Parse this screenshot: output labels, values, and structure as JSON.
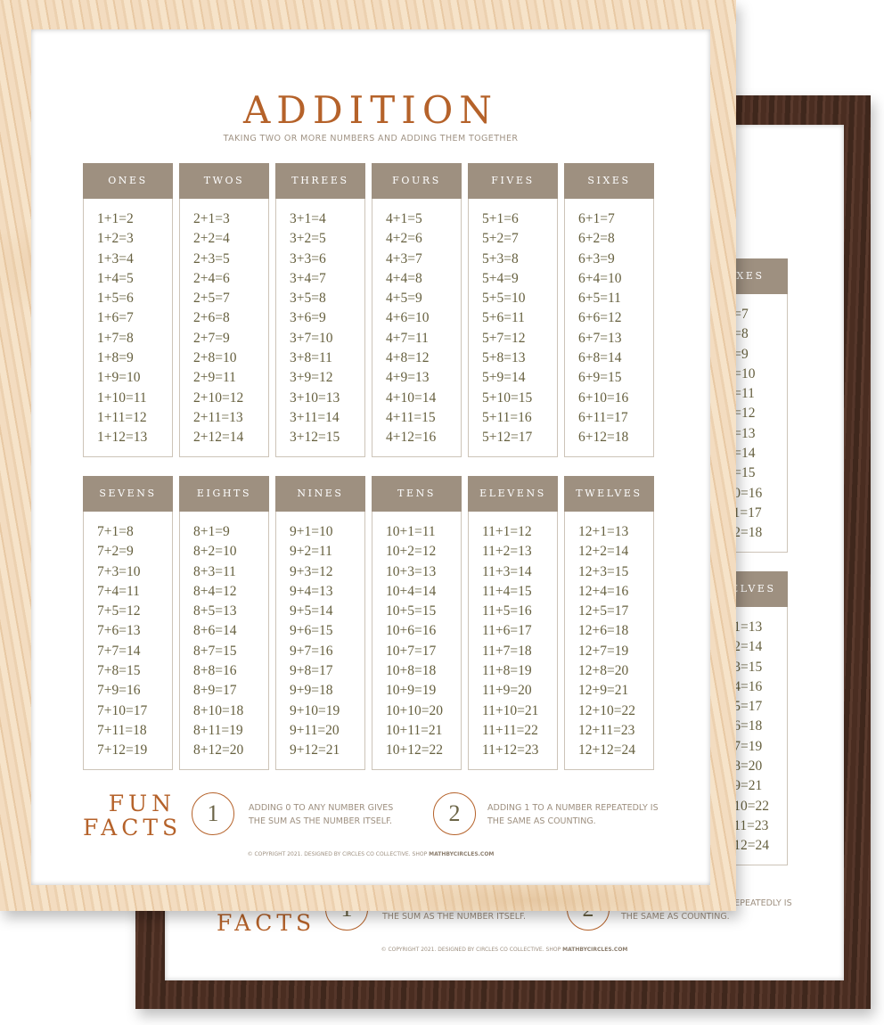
{
  "poster": {
    "title": "ADDITION",
    "subtitle": "TAKING TWO OR MORE NUMBERS AND ADDING THEM TOGETHER",
    "tables": [
      {
        "name": "ONES",
        "equations": [
          "1+1=2",
          "1+2=3",
          "1+3=4",
          "1+4=5",
          "1+5=6",
          "1+6=7",
          "1+7=8",
          "1+8=9",
          "1+9=10",
          "1+10=11",
          "1+11=12",
          "1+12=13"
        ]
      },
      {
        "name": "TWOS",
        "equations": [
          "2+1=3",
          "2+2=4",
          "2+3=5",
          "2+4=6",
          "2+5=7",
          "2+6=8",
          "2+7=9",
          "2+8=10",
          "2+9=11",
          "2+10=12",
          "2+11=13",
          "2+12=14"
        ]
      },
      {
        "name": "THREES",
        "equations": [
          "3+1=4",
          "3+2=5",
          "3+3=6",
          "3+4=7",
          "3+5=8",
          "3+6=9",
          "3+7=10",
          "3+8=11",
          "3+9=12",
          "3+10=13",
          "3+11=14",
          "3+12=15"
        ]
      },
      {
        "name": "FOURS",
        "equations": [
          "4+1=5",
          "4+2=6",
          "4+3=7",
          "4+4=8",
          "4+5=9",
          "4+6=10",
          "4+7=11",
          "4+8=12",
          "4+9=13",
          "4+10=14",
          "4+11=15",
          "4+12=16"
        ]
      },
      {
        "name": "FIVES",
        "equations": [
          "5+1=6",
          "5+2=7",
          "5+3=8",
          "5+4=9",
          "5+5=10",
          "5+6=11",
          "5+7=12",
          "5+8=13",
          "5+9=14",
          "5+10=15",
          "5+11=16",
          "5+12=17"
        ]
      },
      {
        "name": "SIXES",
        "equations": [
          "6+1=7",
          "6+2=8",
          "6+3=9",
          "6+4=10",
          "6+5=11",
          "6+6=12",
          "6+7=13",
          "6+8=14",
          "6+9=15",
          "6+10=16",
          "6+11=17",
          "6+12=18"
        ]
      },
      {
        "name": "SEVENS",
        "equations": [
          "7+1=8",
          "7+2=9",
          "7+3=10",
          "7+4=11",
          "7+5=12",
          "7+6=13",
          "7+7=14",
          "7+8=15",
          "7+9=16",
          "7+10=17",
          "7+11=18",
          "7+12=19"
        ]
      },
      {
        "name": "EIGHTS",
        "equations": [
          "8+1=9",
          "8+2=10",
          "8+3=11",
          "8+4=12",
          "8+5=13",
          "8+6=14",
          "8+7=15",
          "8+8=16",
          "8+9=17",
          "8+10=18",
          "8+11=19",
          "8+12=20"
        ]
      },
      {
        "name": "NINES",
        "equations": [
          "9+1=10",
          "9+2=11",
          "9+3=12",
          "9+4=13",
          "9+5=14",
          "9+6=15",
          "9+7=16",
          "9+8=17",
          "9+9=18",
          "9+10=19",
          "9+11=20",
          "9+12=21"
        ]
      },
      {
        "name": "TENS",
        "equations": [
          "10+1=11",
          "10+2=12",
          "10+3=13",
          "10+4=14",
          "10+5=15",
          "10+6=16",
          "10+7=17",
          "10+8=18",
          "10+9=19",
          "10+10=20",
          "10+11=21",
          "10+12=22"
        ]
      },
      {
        "name": "ELEVENS",
        "equations": [
          "11+1=12",
          "11+2=13",
          "11+3=14",
          "11+4=15",
          "11+5=16",
          "11+6=17",
          "11+7=18",
          "11+8=19",
          "11+9=20",
          "11+10=21",
          "11+11=22",
          "11+12=23"
        ]
      },
      {
        "name": "TWELVES",
        "equations": [
          "12+1=13",
          "12+2=14",
          "12+3=15",
          "12+4=16",
          "12+5=17",
          "12+6=18",
          "12+7=19",
          "12+8=20",
          "12+9=21",
          "12+10=22",
          "12+11=23",
          "12+12=24"
        ]
      }
    ],
    "fun_facts": {
      "heading_line1": "FUN",
      "heading_line2": "FACTS",
      "facts": [
        {
          "number": "1",
          "line1": "ADDING 0 TO ANY NUMBER GIVES",
          "line2": "THE SUM AS THE NUMBER ITSELF."
        },
        {
          "number": "2",
          "line1": "ADDING 1 TO A NUMBER REPEATEDLY IS",
          "line2": "THE SAME AS COUNTING."
        }
      ]
    },
    "copyright": "© COPYRIGHT 2021. DESIGNED BY CIRCLES CO COLLECTIVE. SHOP",
    "shop_link": "MATHBYCIRCLES.COM"
  },
  "colors": {
    "accent": "#b5622a",
    "header_bg": "#9e9080",
    "equation_text": "#66603f",
    "back_frame": "#4a2d21",
    "front_frame": "#f0d7b8"
  }
}
